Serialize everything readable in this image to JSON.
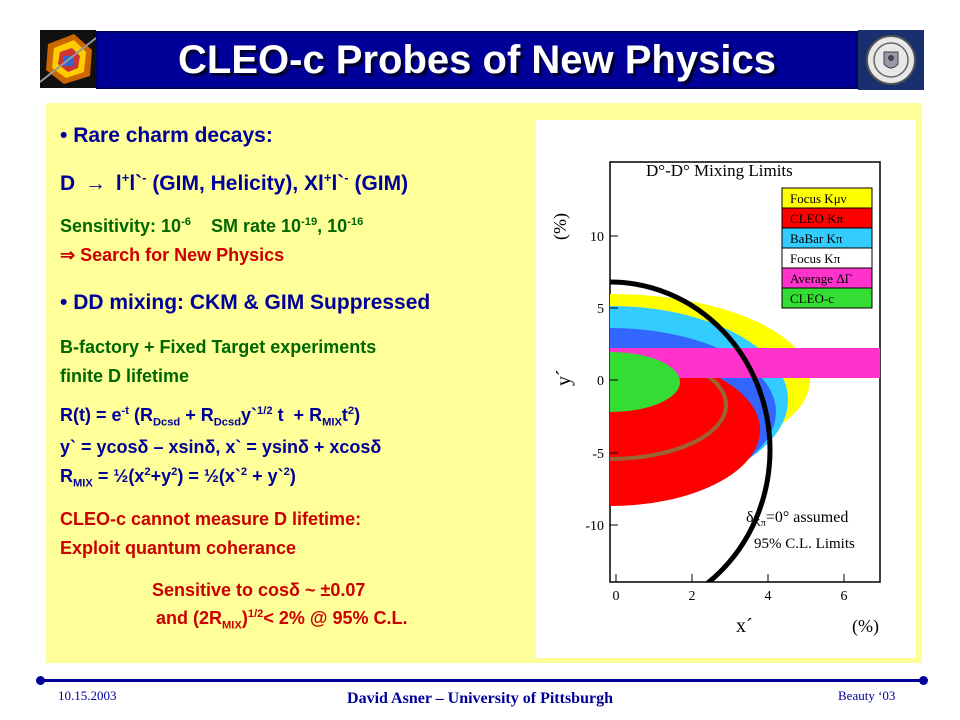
{
  "header": {
    "title": "CLEO-c Probes of New Physics"
  },
  "content": {
    "b1_bullet": "•",
    "b1_title": "Rare charm decays:",
    "line2": {
      "d": "D",
      "arrow": "→",
      "l1": "l",
      "plus": "+",
      "l2": "l`",
      "minus": "-",
      "rest": " (GIM, Helicity), Xl",
      "plus2": "+",
      "l3": "l`",
      "minus2": "-",
      "rest2": " (GIM)"
    },
    "sens": {
      "a": "Sensitivity: 10",
      "e1": "-6",
      "b": "    SM rate 10",
      "e2": "-19",
      "c": ", 10",
      "e3": "-16"
    },
    "search": {
      "arrow": "⇒",
      "text": " Search for New Physics"
    },
    "b2_bullet": "•",
    "b2_title": "DD mixing: CKM & GIM Suppressed",
    "bfac": "B-factory + Fixed Target experiments",
    "finite": "finite D lifetime",
    "rt": {
      "a": "R(t) = e",
      "e1": "-t",
      "b": " (R",
      "s1": "Dcsd",
      "c": " + R",
      "s2": "Dcsd",
      "d": "y`",
      "e2": "1/2",
      "e": " t  + R",
      "s3": "MIX",
      "f": "t",
      "e3": "2",
      "g": ")"
    },
    "yprime": "y` = ycosδ – xsinδ, x` = ysinδ + xcosδ",
    "rmix": {
      "a": "R",
      "s1": "MIX",
      "b": " = ½(x",
      "e1": "2",
      "c": "+y",
      "e2": "2",
      "d": ") = ½(x`",
      "e3": "2",
      "e": " + y`",
      "e4": "2",
      "f": ")"
    },
    "cleo1": "CLEO-c cannot measure D lifetime:",
    "cleo2": "Exploit quantum coherance",
    "sens2": "Sensitive to cosδ ~ ±0.07",
    "and": {
      "a": "and  (2R",
      "s1": "MIX",
      "b": ")",
      "e1": "1/2",
      "c": "< 2% @ 95% C.L."
    }
  },
  "plot": {
    "title": "D°-D° Mixing Limits",
    "xlabel": "x´",
    "ylabel": "y´",
    "xunit": "(%)",
    "yunit": "(%)",
    "xticks": [
      "0",
      "2",
      "4",
      "6"
    ],
    "yticks": [
      "10",
      "5",
      "0",
      "-5",
      "-10"
    ],
    "legend": [
      "Focus Kμν",
      "CLEO Kπ",
      "BaBar Kπ",
      "Focus Kπ",
      "Average ΔΓ",
      "CLEO-c"
    ],
    "note1": "δ",
    "note1sub": "Kπ",
    "note1b": "=0° assumed",
    "note2": "95% C.L. Limits",
    "colors": {
      "yellow": "#ffff00",
      "red": "#ff0000",
      "cyan": "#33ccff",
      "blue": "#3366ff",
      "magenta": "#ff33cc",
      "green": "#33dd33",
      "brown": "#996633"
    }
  },
  "footer": {
    "date": "10.15.2003",
    "author": "David Asner – University of Pittsburgh",
    "conf": "Beauty ‘03"
  }
}
